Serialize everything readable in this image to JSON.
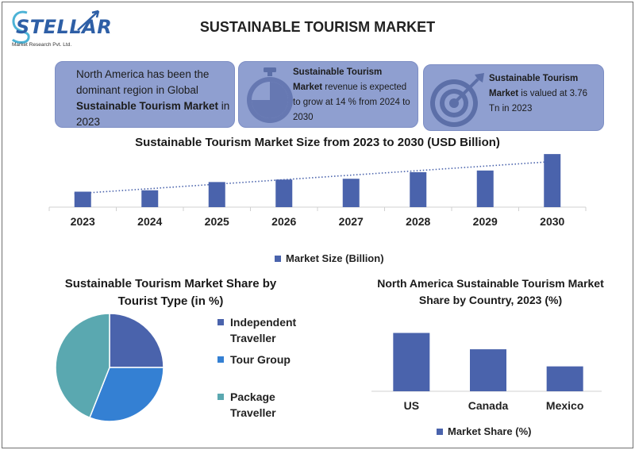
{
  "logo": {
    "word": "STELLAR",
    "subtitle": "Market Research Pvt. Ltd."
  },
  "title": "SUSTAINABLE TOURISM MARKET",
  "cards": [
    {
      "pre": "North America has been the dominant region in Global ",
      "bold": "Sustainable Tourism Market",
      "post": " in 2023",
      "icon": "none"
    },
    {
      "pre": "",
      "bold": "Sustainable Tourism Market",
      "post": " revenue is expected to grow at 14 % from 2024 to 2030",
      "icon": "stopwatch-icon"
    },
    {
      "pre": "",
      "bold": "Sustainable Tourism Market",
      "post": " is valued at 3.76 Tn in 2023",
      "icon": "target-icon"
    }
  ],
  "colors": {
    "bar": "#4a63ac",
    "card": "#8f9fd0",
    "pie_independent": "#4a63ac",
    "pie_tour": "#3480d3",
    "pie_package": "#5aa8b0"
  },
  "chart_data": [
    {
      "type": "bar",
      "title": "Sustainable Tourism Market Size from 2023 to 2030 (USD Billion)",
      "categories": [
        "2023",
        "2024",
        "2025",
        "2026",
        "2027",
        "2028",
        "2029",
        "2030"
      ],
      "series": [
        {
          "name": "Market Size (Billion)",
          "values": [
            3.76,
            4.1,
            6.1,
            6.7,
            6.9,
            8.5,
            8.9,
            12.9
          ]
        }
      ],
      "ylim": [
        0,
        13.5
      ],
      "trendline": "linear dotted",
      "legend": "bottom"
    },
    {
      "type": "pie",
      "title": "Sustainable Tourism Market Share by Tourist Type (in %)",
      "labels": [
        "Independent Traveller",
        "Tour Group",
        "Package Traveller"
      ],
      "values": [
        25,
        31,
        44
      ],
      "legend": "right"
    },
    {
      "type": "bar",
      "title": "North America Sustainable Tourism Market Share by Country, 2023 (%)",
      "categories": [
        "US",
        "Canada",
        "Mexico"
      ],
      "series": [
        {
          "name": "Market Share (%)",
          "values": [
            75,
            54,
            32
          ]
        }
      ],
      "ylim": [
        0,
        100
      ],
      "legend": "bottom"
    }
  ]
}
